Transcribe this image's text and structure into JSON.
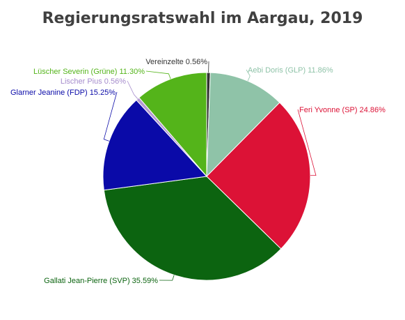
{
  "chart_data": {
    "type": "pie",
    "title": "Regierungsratswahl im Aargau, 2019",
    "slices": [
      {
        "label": "Vereinzelte 0.56%",
        "value": 0.56,
        "color": "#333333",
        "label_color": "#333333"
      },
      {
        "label": "Aebi Doris (GLP) 11.86%",
        "value": 11.86,
        "color": "#8fc3a8",
        "label_color": "#8fc3a8"
      },
      {
        "label": "Feri Yvonne (SP) 24.86%",
        "value": 24.86,
        "color": "#dc1236",
        "label_color": "#dc1236"
      },
      {
        "label": "Gallati Jean-Pierre (SVP) 35.59%",
        "value": 35.59,
        "color": "#0c6410",
        "label_color": "#0c6410"
      },
      {
        "label": "Glarner Jeanine (FDP) 15.25%",
        "value": 15.25,
        "color": "#0a0aa8",
        "label_color": "#0a0aa8"
      },
      {
        "label": "Lischer Pius 0.56%",
        "value": 0.56,
        "color": "#b49ad2",
        "label_color": "#a58ccc"
      },
      {
        "label": "Lüscher Severin (Grüne) 11.30%",
        "value": 11.3,
        "color": "#54b41a",
        "label_color": "#54b41a"
      }
    ]
  }
}
